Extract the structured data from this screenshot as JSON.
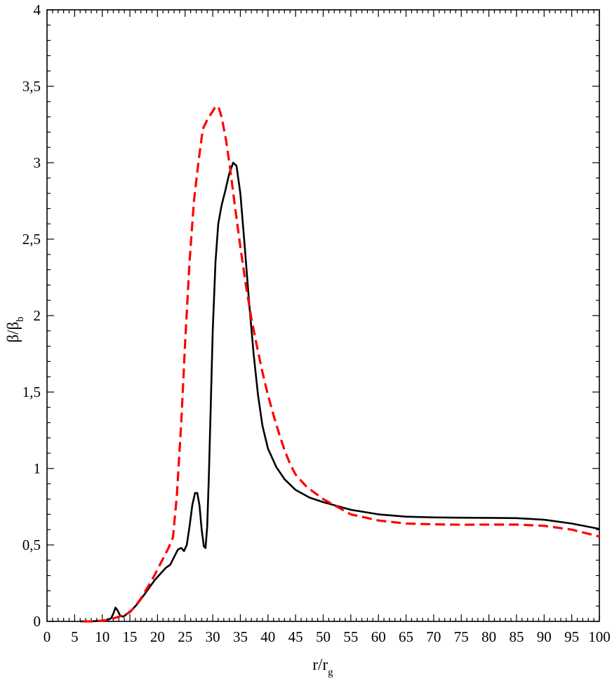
{
  "chart_data": {
    "type": "line",
    "title": "",
    "xlabel": {
      "main": "r/r",
      "sub": "g"
    },
    "ylabel": {
      "main": "β/β",
      "sub": "b"
    },
    "xlim": [
      0,
      100
    ],
    "ylim": [
      0,
      4
    ],
    "x_ticks": [
      "0",
      "5",
      "10",
      "15",
      "20",
      "25",
      "30",
      "35",
      "40",
      "45",
      "50",
      "55",
      "60",
      "65",
      "70",
      "75",
      "80",
      "85",
      "90",
      "95",
      "100"
    ],
    "y_ticks": [
      "0",
      "0,5",
      "1",
      "1,5",
      "2",
      "2,5",
      "3",
      "3,5",
      "4"
    ],
    "grid": false,
    "legend": "none",
    "series": [
      {
        "style": "solid",
        "color": "#000000",
        "points": [
          [
            6,
            0
          ],
          [
            8,
            0
          ],
          [
            10,
            0.005
          ],
          [
            11,
            0.01
          ],
          [
            11.6,
            0.02
          ],
          [
            12.0,
            0.05
          ],
          [
            12.4,
            0.09
          ],
          [
            12.8,
            0.07
          ],
          [
            13.2,
            0.04
          ],
          [
            13.8,
            0.03
          ],
          [
            14.5,
            0.05
          ],
          [
            15.5,
            0.08
          ],
          [
            16.5,
            0.12
          ],
          [
            17.5,
            0.17
          ],
          [
            18.5,
            0.22
          ],
          [
            19.5,
            0.27
          ],
          [
            20.5,
            0.31
          ],
          [
            21.5,
            0.35
          ],
          [
            22.3,
            0.37
          ],
          [
            23.0,
            0.42
          ],
          [
            23.7,
            0.47
          ],
          [
            24.3,
            0.48
          ],
          [
            24.8,
            0.46
          ],
          [
            25.3,
            0.5
          ],
          [
            25.8,
            0.62
          ],
          [
            26.3,
            0.76
          ],
          [
            26.8,
            0.84
          ],
          [
            27.2,
            0.84
          ],
          [
            27.6,
            0.76
          ],
          [
            28.0,
            0.6
          ],
          [
            28.4,
            0.49
          ],
          [
            28.7,
            0.48
          ],
          [
            29.0,
            0.62
          ],
          [
            29.3,
            0.95
          ],
          [
            29.6,
            1.35
          ],
          [
            30.0,
            1.9
          ],
          [
            30.5,
            2.35
          ],
          [
            31.0,
            2.6
          ],
          [
            31.6,
            2.72
          ],
          [
            32.3,
            2.82
          ],
          [
            33.0,
            2.93
          ],
          [
            33.7,
            3.0
          ],
          [
            34.3,
            2.98
          ],
          [
            35.0,
            2.8
          ],
          [
            35.8,
            2.45
          ],
          [
            36.6,
            2.08
          ],
          [
            37.4,
            1.75
          ],
          [
            38.2,
            1.48
          ],
          [
            39.0,
            1.28
          ],
          [
            40.0,
            1.13
          ],
          [
            41.5,
            1.01
          ],
          [
            43.0,
            0.93
          ],
          [
            45.0,
            0.86
          ],
          [
            47.5,
            0.81
          ],
          [
            50.0,
            0.78
          ],
          [
            55.0,
            0.73
          ],
          [
            60.0,
            0.7
          ],
          [
            65.0,
            0.685
          ],
          [
            70.0,
            0.68
          ],
          [
            75.0,
            0.678
          ],
          [
            80.0,
            0.677
          ],
          [
            85.0,
            0.675
          ],
          [
            90.0,
            0.665
          ],
          [
            95.0,
            0.64
          ],
          [
            100.0,
            0.605
          ]
        ]
      },
      {
        "style": "dashed",
        "color": "#ff0000",
        "points": [
          [
            6.5,
            0
          ],
          [
            8,
            0
          ],
          [
            10,
            0.005
          ],
          [
            11,
            0.01
          ],
          [
            12,
            0.02
          ],
          [
            13,
            0.03
          ],
          [
            14,
            0.04
          ],
          [
            15,
            0.06
          ],
          [
            16,
            0.1
          ],
          [
            17,
            0.15
          ],
          [
            18,
            0.21
          ],
          [
            19,
            0.27
          ],
          [
            20,
            0.34
          ],
          [
            21,
            0.41
          ],
          [
            22,
            0.48
          ],
          [
            22.8,
            0.55
          ],
          [
            23.5,
            0.82
          ],
          [
            24.3,
            1.3
          ],
          [
            25.0,
            1.82
          ],
          [
            25.8,
            2.35
          ],
          [
            26.6,
            2.75
          ],
          [
            27.4,
            3.0
          ],
          [
            28.2,
            3.22
          ],
          [
            29.0,
            3.28
          ],
          [
            29.7,
            3.32
          ],
          [
            30.4,
            3.36
          ],
          [
            31.0,
            3.37
          ],
          [
            31.6,
            3.3
          ],
          [
            32.4,
            3.15
          ],
          [
            33.2,
            2.95
          ],
          [
            34.0,
            2.72
          ],
          [
            35.0,
            2.45
          ],
          [
            36.0,
            2.2
          ],
          [
            37.0,
            1.98
          ],
          [
            38.0,
            1.8
          ],
          [
            39.0,
            1.63
          ],
          [
            40.0,
            1.48
          ],
          [
            41.0,
            1.35
          ],
          [
            42.0,
            1.23
          ],
          [
            43.0,
            1.12
          ],
          [
            44.0,
            1.03
          ],
          [
            45.0,
            0.96
          ],
          [
            47.0,
            0.88
          ],
          [
            50.0,
            0.8
          ],
          [
            55.0,
            0.7
          ],
          [
            60.0,
            0.66
          ],
          [
            65.0,
            0.64
          ],
          [
            70.0,
            0.635
          ],
          [
            75.0,
            0.632
          ],
          [
            80.0,
            0.633
          ],
          [
            85.0,
            0.633
          ],
          [
            90.0,
            0.625
          ],
          [
            95.0,
            0.6
          ],
          [
            100.0,
            0.555
          ]
        ]
      }
    ]
  }
}
